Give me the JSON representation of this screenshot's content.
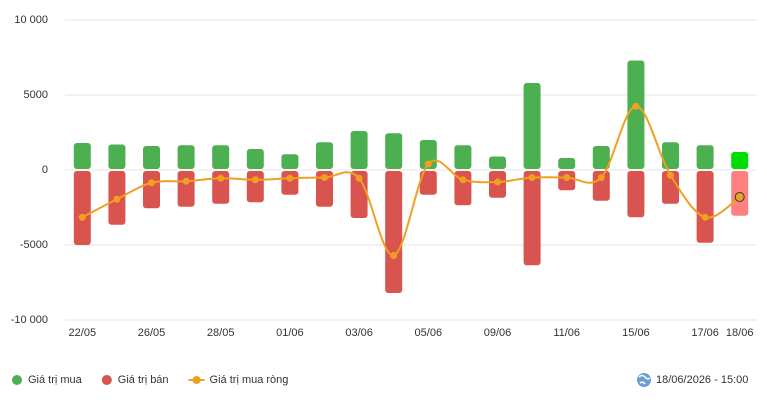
{
  "chart_data": {
    "type": "bar-line",
    "categories": [
      "22/05",
      null,
      "26/05",
      null,
      "28/05",
      null,
      "01/06",
      null,
      "03/06",
      null,
      "05/06",
      null,
      "09/06",
      null,
      "11/06",
      null,
      "15/06",
      null,
      "17/06",
      "18/06"
    ],
    "series": [
      {
        "name": "Giá trị mua",
        "type": "bar",
        "color": "#4caf50",
        "highlight_color": "#00dd00",
        "values": [
          1800,
          1700,
          1600,
          1650,
          1650,
          1400,
          1050,
          1850,
          2600,
          2450,
          2000,
          1650,
          900,
          5800,
          800,
          1600,
          7300,
          1850,
          1650,
          1200
        ]
      },
      {
        "name": "Giá trị bán",
        "type": "bar",
        "color": "#d9534f",
        "highlight_color": "#ff8080",
        "values": [
          -5000,
          -3650,
          -2550,
          -2450,
          -2250,
          -2150,
          -1650,
          -2450,
          -3200,
          -8200,
          -1650,
          -2350,
          -1850,
          -6350,
          -1350,
          -2050,
          -3150,
          -2250,
          -4850,
          -3050
        ]
      },
      {
        "name": "Giá trị mua ròng",
        "type": "line",
        "color": "#f0a020",
        "values": [
          -3150,
          -1950,
          -850,
          -750,
          -550,
          -650,
          -550,
          -500,
          -550,
          -5700,
          400,
          -650,
          -800,
          -500,
          -500,
          -500,
          4250,
          -350,
          -3150,
          -1800
        ]
      }
    ],
    "ylim": [
      -10000,
      10000
    ],
    "yticks": [
      {
        "value": -10000,
        "label": "-10 000"
      },
      -5000,
      0,
      5000,
      {
        "value": 10000,
        "label": "10 000"
      }
    ],
    "grid": true,
    "legend": "bottom-left",
    "timestamp": "18/06/2026 - 15:00"
  }
}
